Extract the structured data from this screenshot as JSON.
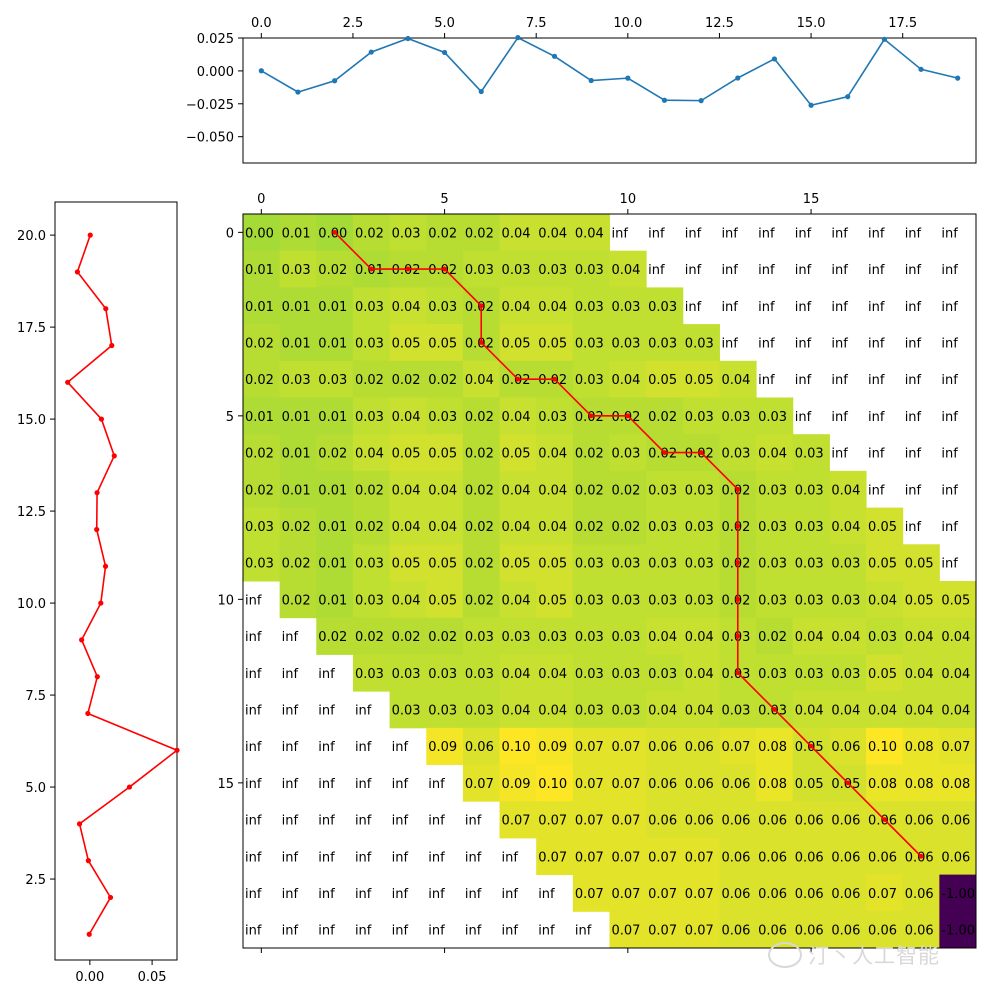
{
  "watermark": "汀丶人工智能",
  "colors": {
    "line": "#1f77b4",
    "path": "#ff0000",
    "axis": "#000000",
    "green": "#a5db36",
    "yellow": "#fde725",
    "purple": "#440154"
  },
  "chart_data": [
    {
      "id": "top",
      "type": "line",
      "x": [
        0,
        1,
        2,
        3,
        4,
        5,
        6,
        7,
        8,
        9,
        10,
        11,
        12,
        13,
        14,
        15,
        16,
        17,
        18,
        19
      ],
      "values": [
        0.0001,
        -0.0161,
        -0.0075,
        0.0143,
        0.0246,
        0.014,
        -0.0157,
        0.0253,
        0.0111,
        -0.0073,
        -0.0055,
        -0.0223,
        -0.0226,
        -0.0054,
        0.0091,
        -0.0261,
        -0.0196,
        0.024,
        0.0012,
        -0.0055
      ],
      "xlim": [
        -0.5,
        19.5
      ],
      "ylim": [
        -0.07,
        0.025
      ],
      "xticks": [
        0,
        2.5,
        5,
        7.5,
        10,
        12.5,
        15,
        17.5
      ],
      "xtick_labels": [
        "0.0",
        "2.5",
        "5.0",
        "7.5",
        "10.0",
        "12.5",
        "15.0",
        "17.5"
      ],
      "yticks": [
        0.025,
        0,
        -0.025,
        -0.05
      ],
      "ytick_labels": [
        "0.025",
        "0.000",
        "−0.025",
        "−0.050"
      ],
      "xaxis_position": "top"
    },
    {
      "id": "left",
      "type": "line",
      "x": [
        0.0003,
        -0.01,
        0.0128,
        0.0176,
        -0.0178,
        0.0093,
        0.0196,
        0.0058,
        0.0055,
        0.0126,
        0.0088,
        -0.0066,
        0.006,
        -0.0016,
        0.07,
        0.0318,
        -0.0083,
        -0.0012,
        0.0166,
        -0.0005
      ],
      "y": [
        20,
        19,
        18,
        17,
        16,
        15,
        14,
        13,
        12,
        11,
        10,
        9,
        8,
        7,
        6,
        5,
        4,
        3,
        2,
        1
      ],
      "xlim": [
        -0.028,
        0.07
      ],
      "ylim": [
        0.3,
        20.9
      ],
      "xticks": [
        0,
        0.05
      ],
      "xtick_labels": [
        "0.00",
        "0.05"
      ],
      "yticks": [
        2.5,
        5,
        7.5,
        10,
        12.5,
        15,
        17.5,
        20
      ],
      "ytick_labels": [
        "2.5",
        "5.0",
        "7.5",
        "10.0",
        "12.5",
        "15.0",
        "17.5",
        "20.0"
      ]
    },
    {
      "id": "matrix",
      "type": "heatmap",
      "rows": 20,
      "cols": 20,
      "cells": [
        [
          "0.00",
          "0.01",
          "0.00",
          "0.02",
          "0.03",
          "0.02",
          "0.02",
          "0.04",
          "0.04",
          "0.04",
          "inf",
          "inf",
          "inf",
          "inf",
          "inf",
          "inf",
          "inf",
          "inf",
          "inf",
          "inf"
        ],
        [
          "0.01",
          "0.03",
          "0.02",
          "0.01",
          "0.02",
          "0.02",
          "0.03",
          "0.03",
          "0.03",
          "0.03",
          "0.04",
          "inf",
          "inf",
          "inf",
          "inf",
          "inf",
          "inf",
          "inf",
          "inf",
          "inf"
        ],
        [
          "0.01",
          "0.01",
          "0.01",
          "0.03",
          "0.04",
          "0.03",
          "0.02",
          "0.04",
          "0.04",
          "0.03",
          "0.03",
          "0.03",
          "inf",
          "inf",
          "inf",
          "inf",
          "inf",
          "inf",
          "inf",
          "inf"
        ],
        [
          "0.02",
          "0.01",
          "0.01",
          "0.03",
          "0.05",
          "0.05",
          "0.02",
          "0.05",
          "0.05",
          "0.03",
          "0.03",
          "0.03",
          "0.03",
          "inf",
          "inf",
          "inf",
          "inf",
          "inf",
          "inf",
          "inf"
        ],
        [
          "0.02",
          "0.03",
          "0.03",
          "0.02",
          "0.02",
          "0.02",
          "0.04",
          "0.02",
          "0.02",
          "0.03",
          "0.04",
          "0.05",
          "0.05",
          "0.04",
          "inf",
          "inf",
          "inf",
          "inf",
          "inf",
          "inf"
        ],
        [
          "0.01",
          "0.01",
          "0.01",
          "0.03",
          "0.04",
          "0.03",
          "0.02",
          "0.04",
          "0.03",
          "0.02",
          "0.02",
          "0.02",
          "0.03",
          "0.03",
          "0.03",
          "inf",
          "inf",
          "inf",
          "inf",
          "inf"
        ],
        [
          "0.02",
          "0.01",
          "0.02",
          "0.04",
          "0.05",
          "0.05",
          "0.02",
          "0.05",
          "0.04",
          "0.02",
          "0.03",
          "0.02",
          "0.02",
          "0.03",
          "0.04",
          "0.03",
          "inf",
          "inf",
          "inf",
          "inf"
        ],
        [
          "0.02",
          "0.01",
          "0.01",
          "0.02",
          "0.04",
          "0.04",
          "0.02",
          "0.04",
          "0.04",
          "0.02",
          "0.02",
          "0.03",
          "0.03",
          "0.02",
          "0.03",
          "0.03",
          "0.04",
          "inf",
          "inf",
          "inf"
        ],
        [
          "0.03",
          "0.02",
          "0.01",
          "0.02",
          "0.04",
          "0.04",
          "0.02",
          "0.04",
          "0.04",
          "0.02",
          "0.02",
          "0.03",
          "0.03",
          "0.02",
          "0.03",
          "0.03",
          "0.04",
          "0.05",
          "inf",
          "inf"
        ],
        [
          "0.03",
          "0.02",
          "0.01",
          "0.03",
          "0.05",
          "0.05",
          "0.02",
          "0.05",
          "0.05",
          "0.03",
          "0.03",
          "0.03",
          "0.03",
          "0.02",
          "0.03",
          "0.03",
          "0.03",
          "0.05",
          "0.05",
          "inf"
        ],
        [
          "inf",
          "0.02",
          "0.01",
          "0.03",
          "0.04",
          "0.05",
          "0.02",
          "0.04",
          "0.05",
          "0.03",
          "0.03",
          "0.03",
          "0.03",
          "0.02",
          "0.03",
          "0.03",
          "0.03",
          "0.04",
          "0.05",
          "0.05"
        ],
        [
          "inf",
          "inf",
          "0.02",
          "0.02",
          "0.02",
          "0.02",
          "0.03",
          "0.03",
          "0.03",
          "0.03",
          "0.03",
          "0.04",
          "0.04",
          "0.03",
          "0.02",
          "0.04",
          "0.04",
          "0.03",
          "0.04",
          "0.04"
        ],
        [
          "inf",
          "inf",
          "inf",
          "0.03",
          "0.03",
          "0.03",
          "0.03",
          "0.04",
          "0.04",
          "0.03",
          "0.03",
          "0.03",
          "0.04",
          "0.03",
          "0.03",
          "0.03",
          "0.03",
          "0.05",
          "0.04",
          "0.04"
        ],
        [
          "inf",
          "inf",
          "inf",
          "inf",
          "0.03",
          "0.03",
          "0.03",
          "0.04",
          "0.04",
          "0.03",
          "0.03",
          "0.04",
          "0.04",
          "0.03",
          "0.03",
          "0.04",
          "0.04",
          "0.04",
          "0.04",
          "0.04"
        ],
        [
          "inf",
          "inf",
          "inf",
          "inf",
          "inf",
          "0.09",
          "0.06",
          "0.10",
          "0.09",
          "0.07",
          "0.07",
          "0.06",
          "0.06",
          "0.07",
          "0.08",
          "0.05",
          "0.06",
          "0.10",
          "0.08",
          "0.07"
        ],
        [
          "inf",
          "inf",
          "inf",
          "inf",
          "inf",
          "inf",
          "0.07",
          "0.09",
          "0.10",
          "0.07",
          "0.07",
          "0.06",
          "0.06",
          "0.06",
          "0.08",
          "0.05",
          "0.05",
          "0.08",
          "0.08",
          "0.08"
        ],
        [
          "inf",
          "inf",
          "inf",
          "inf",
          "inf",
          "inf",
          "inf",
          "0.07",
          "0.07",
          "0.07",
          "0.07",
          "0.06",
          "0.06",
          "0.06",
          "0.06",
          "0.06",
          "0.06",
          "0.06",
          "0.06",
          "0.06"
        ],
        [
          "inf",
          "inf",
          "inf",
          "inf",
          "inf",
          "inf",
          "inf",
          "inf",
          "0.07",
          "0.07",
          "0.07",
          "0.07",
          "0.07",
          "0.06",
          "0.06",
          "0.06",
          "0.06",
          "0.06",
          "0.06",
          "0.06"
        ],
        [
          "inf",
          "inf",
          "inf",
          "inf",
          "inf",
          "inf",
          "inf",
          "inf",
          "inf",
          "0.07",
          "0.07",
          "0.07",
          "0.07",
          "0.06",
          "0.06",
          "0.06",
          "0.06",
          "0.07",
          "0.06",
          "-1.00"
        ],
        [
          "inf",
          "inf",
          "inf",
          "inf",
          "inf",
          "inf",
          "inf",
          "inf",
          "inf",
          "inf",
          "0.07",
          "0.07",
          "0.07",
          "0.06",
          "0.06",
          "0.06",
          "0.06",
          "0.06",
          "0.06",
          "-1.00"
        ]
      ],
      "path": [
        [
          2,
          0
        ],
        [
          3,
          1
        ],
        [
          4,
          1
        ],
        [
          5,
          1
        ],
        [
          6,
          2
        ],
        [
          6,
          3
        ],
        [
          7,
          4
        ],
        [
          8,
          4
        ],
        [
          9,
          5
        ],
        [
          10,
          5
        ],
        [
          11,
          6
        ],
        [
          12,
          6
        ],
        [
          13,
          7
        ],
        [
          13,
          8
        ],
        [
          13,
          9
        ],
        [
          13,
          10
        ],
        [
          13,
          11
        ],
        [
          13,
          12
        ],
        [
          14,
          13
        ],
        [
          15,
          14
        ],
        [
          16,
          15
        ],
        [
          17,
          16
        ],
        [
          18,
          17
        ]
      ],
      "xticks": [
        0,
        5,
        10,
        15
      ],
      "xtick_labels": [
        "0",
        "5",
        "10",
        "15"
      ],
      "yticks": [
        0,
        5,
        10,
        15
      ],
      "ytick_labels": [
        "0",
        "5",
        "10",
        "15"
      ],
      "xaxis_position": "top"
    }
  ]
}
